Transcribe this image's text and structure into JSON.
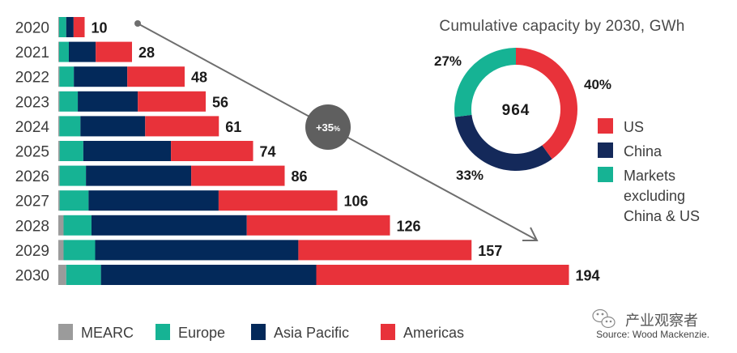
{
  "chart_data": [
    {
      "type": "bar",
      "orientation": "horizontal",
      "stacked": true,
      "title": "",
      "xlabel": "",
      "ylabel": "",
      "categories": [
        "2020",
        "2021",
        "2022",
        "2023",
        "2024",
        "2025",
        "2026",
        "2027",
        "2028",
        "2029",
        "2030"
      ],
      "series": [
        {
          "name": "MEARC",
          "color": "#9b9b9b",
          "values": [
            0.3,
            0.3,
            0.4,
            0.4,
            0.4,
            0.5,
            0.5,
            0.5,
            2,
            2,
            3
          ]
        },
        {
          "name": "Europe",
          "color": "#16b394",
          "values": [
            2.7,
            3.7,
            5.5,
            7,
            8,
            9,
            10,
            11,
            10.6,
            12,
            13.2
          ]
        },
        {
          "name": "Asia Pacific",
          "color": "#03295a",
          "values": [
            2.8,
            10.2,
            20.3,
            22.8,
            24.6,
            33.3,
            40,
            49.4,
            59,
            77.2,
            81.8
          ]
        },
        {
          "name": "Americas",
          "color": "#e8323a",
          "values": [
            4.2,
            13.8,
            21.8,
            25.8,
            28,
            31.2,
            35.5,
            45.1,
            54.4,
            65.8,
            96
          ]
        }
      ],
      "totals": [
        10,
        28,
        48,
        56,
        61,
        74,
        86,
        106,
        126,
        157,
        194
      ],
      "xlim": [
        0,
        200
      ],
      "grid": false,
      "legend": "bottom",
      "annotation": {
        "text": "+35",
        "suffix": "%",
        "meaning": "growth arrow from 2020 to 2030"
      }
    },
    {
      "type": "pie",
      "donut": true,
      "title": "Cumulative capacity by 2030, GWh",
      "center_label": "964",
      "slices": [
        {
          "name": "US",
          "value": 40,
          "label": "40%",
          "color": "#e8323a"
        },
        {
          "name": "China",
          "value": 33,
          "label": "33%",
          "color": "#14295a"
        },
        {
          "name": "Markets excluding China & US",
          "value": 27,
          "label": "27%",
          "color": "#16b394"
        }
      ],
      "legend": "right",
      "legend_lines": [
        [
          "US"
        ],
        [
          "China"
        ],
        [
          "Markets",
          "excluding",
          "China & US"
        ]
      ]
    }
  ],
  "source": "Source: Wood Mackenzie.",
  "watermark": "产业观察者"
}
